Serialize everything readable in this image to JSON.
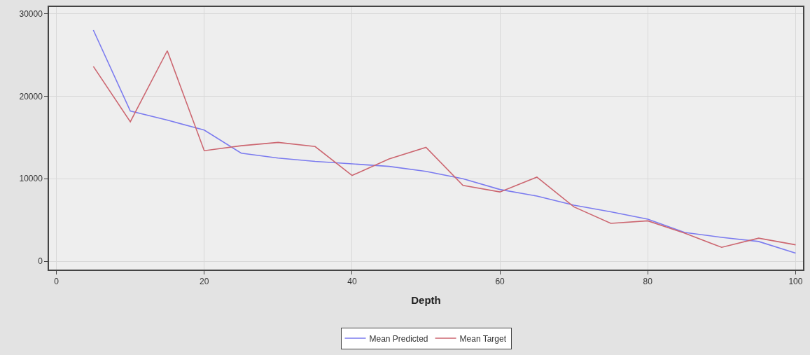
{
  "chart_data": {
    "type": "line",
    "xlabel": "Depth",
    "x": [
      5,
      10,
      15,
      20,
      25,
      30,
      35,
      40,
      45,
      50,
      55,
      60,
      65,
      70,
      75,
      80,
      85,
      90,
      95,
      100
    ],
    "series": [
      {
        "name": "Mean Predicted",
        "color": "#7b7bef",
        "values": [
          28000,
          18200,
          17100,
          15900,
          13100,
          12500,
          12100,
          11800,
          11500,
          10900,
          10000,
          8700,
          7900,
          6800,
          6000,
          5100,
          3500,
          2900,
          2400,
          1000
        ]
      },
      {
        "name": "Mean Target",
        "color": "#cc6670",
        "values": [
          23600,
          16900,
          25500,
          13400,
          14000,
          14400,
          13900,
          10400,
          12400,
          13800,
          9200,
          8400,
          10200,
          6600,
          4600,
          4900,
          3400,
          1700,
          2800,
          2000
        ]
      }
    ],
    "xlim": [
      -1,
      101
    ],
    "xticks": [
      0,
      20,
      40,
      60,
      80,
      100
    ],
    "ylim": [
      -1000,
      30800
    ],
    "yticks": [
      0,
      10000,
      20000,
      30000
    ],
    "grid": true,
    "legend": "bottom",
    "marker": "none",
    "line_style": "solid"
  }
}
